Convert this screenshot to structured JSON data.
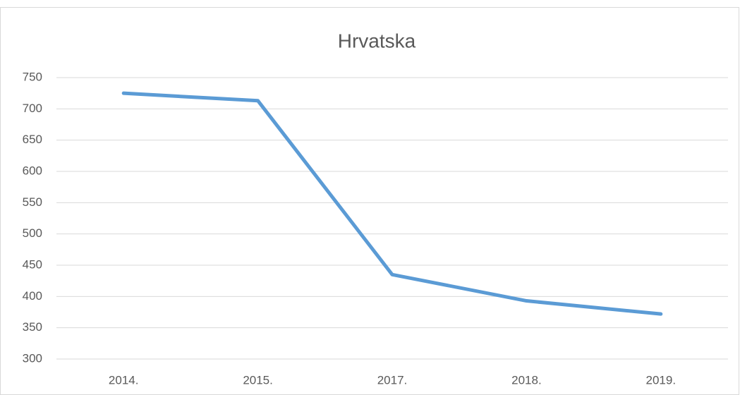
{
  "chart_data": {
    "type": "line",
    "title": "Hrvatska",
    "categories": [
      "2014.",
      "2015.",
      "2017.",
      "2018.",
      "2019."
    ],
    "series": [
      {
        "name": "Hrvatska",
        "color": "#5b9bd5",
        "values": [
          725,
          713,
          435,
          393,
          372
        ]
      }
    ],
    "ylim": [
      300,
      750
    ],
    "yticks": [
      300,
      350,
      400,
      450,
      500,
      550,
      600,
      650,
      700,
      750
    ],
    "grid": true
  }
}
